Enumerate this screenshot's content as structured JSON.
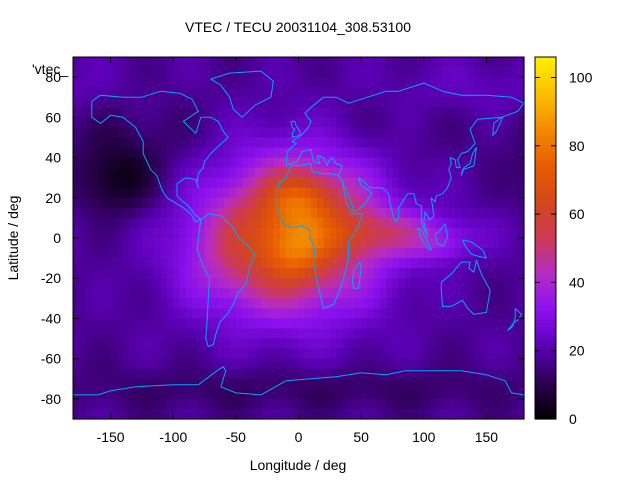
{
  "chart_data": {
    "type": "heatmap",
    "title": "VTEC / TECU 20031104_308.53100",
    "xlabel": "Longitude / deg",
    "ylabel": "Latitude / deg",
    "xlim": [
      -180,
      180
    ],
    "ylim": [
      -90,
      90
    ],
    "xticks": [
      -150,
      -100,
      -50,
      0,
      50,
      100,
      150
    ],
    "yticks": [
      -80,
      -60,
      -40,
      -20,
      0,
      20,
      40,
      60,
      80
    ],
    "colorbar": {
      "range": [
        0,
        106
      ],
      "ticks": [
        0,
        20,
        40,
        60,
        80,
        100
      ]
    },
    "colormap": [
      "#000000",
      "#2b0050",
      "#5a00b4",
      "#8a10ee",
      "#b42bc8",
      "#cc3a55",
      "#d4471a",
      "#e85c00",
      "#f28a00",
      "#fbbf00",
      "#ffef00"
    ],
    "coastline_color": "#00a6ff",
    "top_left_label": "'vtec_",
    "field": {
      "baseline": 18,
      "blobs": [
        {
          "lon": 0,
          "lat": 3,
          "slon": 48,
          "slat": 28,
          "amp": 48
        },
        {
          "lon": 0,
          "lat": 20,
          "slon": 18,
          "slat": 9,
          "amp": 18
        },
        {
          "lon": -3,
          "lat": -8,
          "slon": 16,
          "slat": 11,
          "amp": 14
        },
        {
          "lon": 75,
          "lat": 2,
          "slon": 45,
          "slat": 8,
          "amp": 18
        },
        {
          "lon": 115,
          "lat": -5,
          "slon": 15,
          "slat": 6,
          "amp": 8
        },
        {
          "lon": -55,
          "lat": -10,
          "slon": 35,
          "slat": 20,
          "amp": 12
        },
        {
          "lon": -145,
          "lat": 28,
          "slon": 22,
          "slat": 12,
          "amp": -14
        },
        {
          "lon": -130,
          "lat": 50,
          "slon": 45,
          "slat": 15,
          "amp": -5
        },
        {
          "lon": 60,
          "lat": 55,
          "slon": 50,
          "slat": 15,
          "amp": -3
        },
        {
          "lon": 140,
          "lat": 75,
          "slon": 60,
          "slat": 10,
          "amp": 5
        },
        {
          "lon": 0,
          "lat": -75,
          "slon": 150,
          "slat": 8,
          "amp": -6
        }
      ]
    }
  }
}
